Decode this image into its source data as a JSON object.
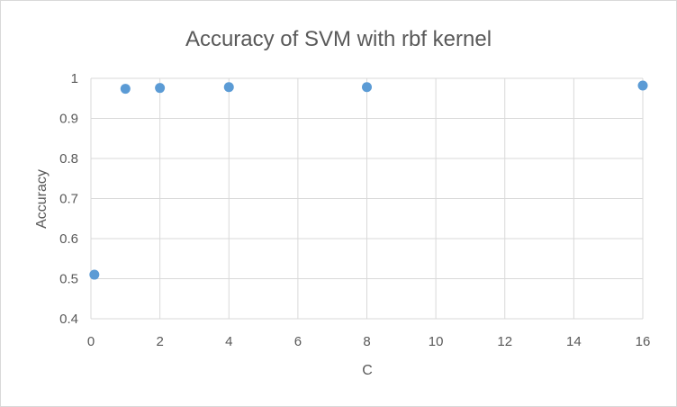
{
  "chart_data": {
    "type": "scatter",
    "title": "Accuracy of SVM with rbf kernel",
    "xlabel": "C",
    "ylabel": "Accuracy",
    "xlim": [
      0,
      16
    ],
    "ylim": [
      0.4,
      1
    ],
    "xticks": [
      0,
      2,
      4,
      6,
      8,
      10,
      12,
      14,
      16
    ],
    "yticks": [
      0.4,
      0.5,
      0.6,
      0.7,
      0.8,
      0.9,
      1
    ],
    "ytick_labels": [
      "0.4",
      "0.5",
      "0.6",
      "0.7",
      "0.8",
      "0.9",
      "1"
    ],
    "grid": true,
    "legend": "none",
    "color": "#5b9bd5",
    "x": [
      0.1,
      1,
      2,
      4,
      8,
      16
    ],
    "y": [
      0.51,
      0.974,
      0.976,
      0.978,
      0.978,
      0.982
    ]
  }
}
